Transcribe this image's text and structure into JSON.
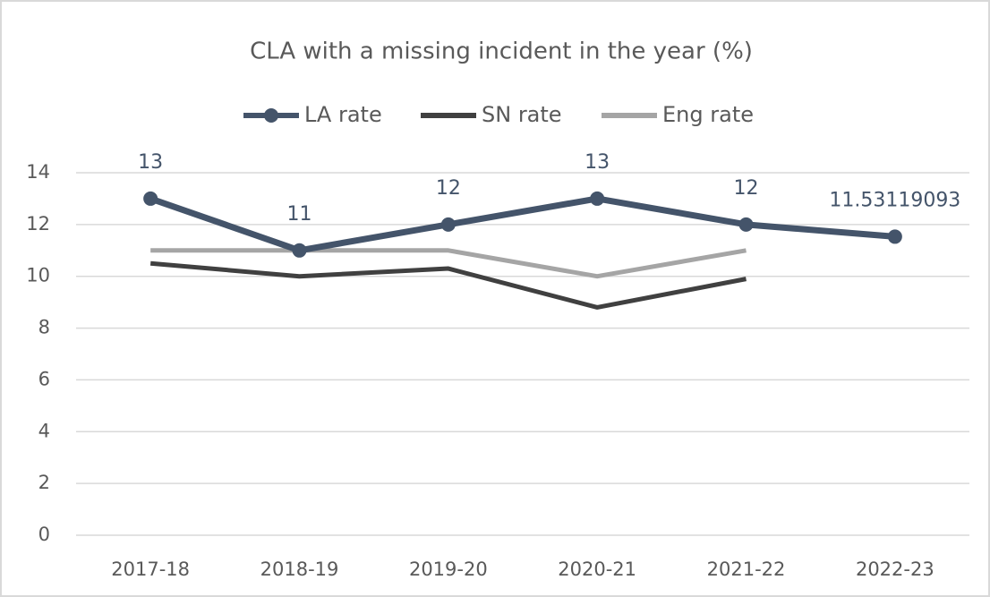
{
  "chart_data": {
    "type": "line",
    "title": "CLA with a missing incident in the year (%)",
    "categories": [
      "2017-18",
      "2018-19",
      "2019-20",
      "2020-21",
      "2021-22",
      "2022-23"
    ],
    "series": [
      {
        "name": "LA rate",
        "color": "#44546a",
        "markers": true,
        "data_labels": true,
        "values": [
          13,
          11,
          12,
          13,
          12,
          11.53119093
        ]
      },
      {
        "name": "SN rate",
        "color": "#404040",
        "markers": false,
        "data_labels": false,
        "values": [
          10.5,
          10,
          10.3,
          8.8,
          9.9,
          null
        ]
      },
      {
        "name": "Eng rate",
        "color": "#a5a5a5",
        "markers": false,
        "data_labels": false,
        "values": [
          11,
          11,
          11,
          10,
          11,
          null
        ]
      }
    ],
    "ylim": [
      0,
      14
    ],
    "yticks": [
      0,
      2,
      4,
      6,
      8,
      10,
      12,
      14
    ],
    "grid": true,
    "legend": "top"
  }
}
